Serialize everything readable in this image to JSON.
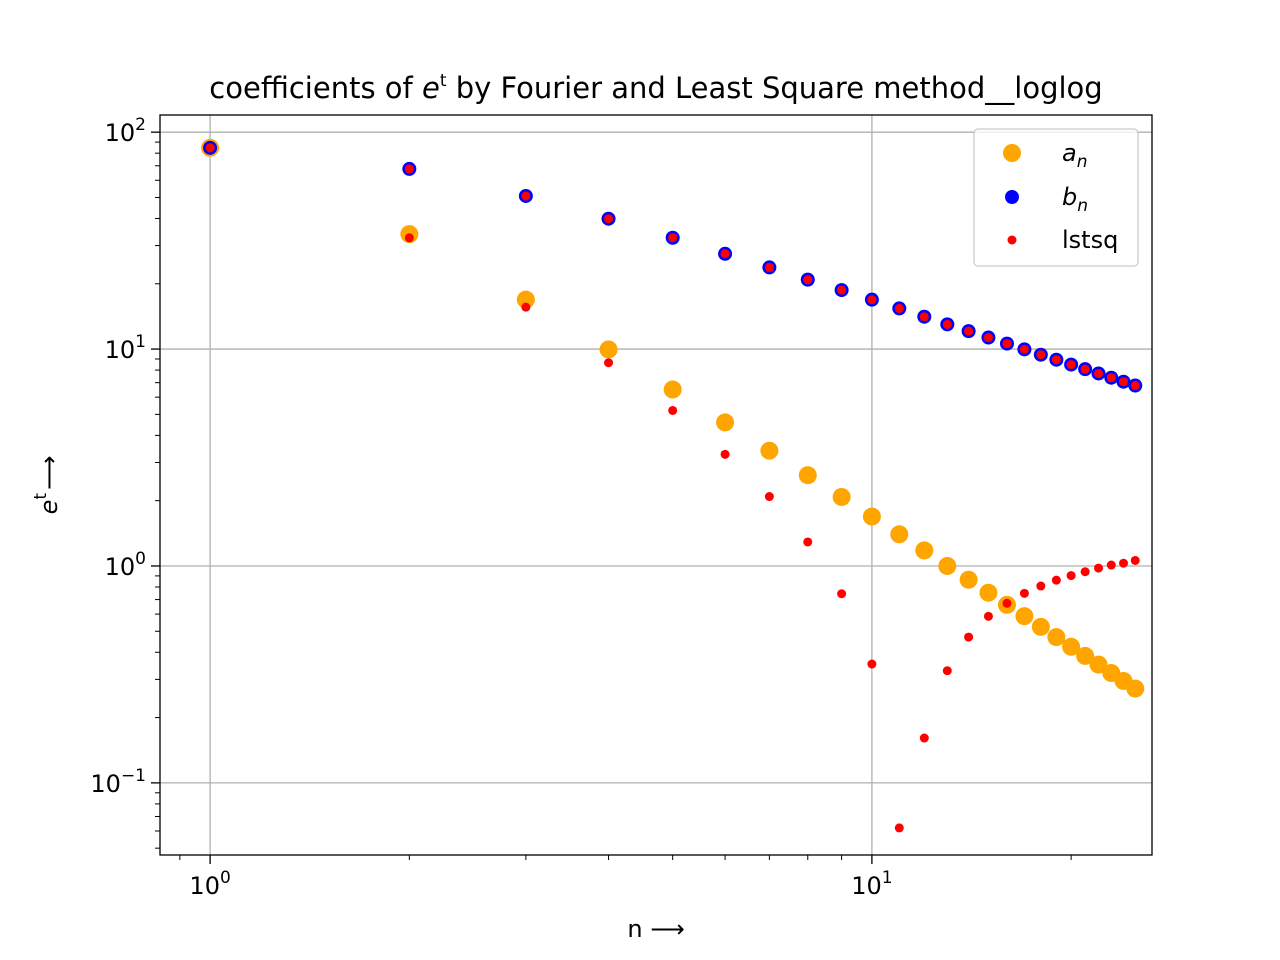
{
  "chart_data": {
    "type": "scatter",
    "title": {
      "prefix": "coefficients of ",
      "base": "e",
      "sup": "t",
      "suffix": " by Fourier and Least Square method__loglog"
    },
    "xlabel": "n ⟶",
    "ylabel": {
      "base": "e",
      "sup": "t",
      "arrow": "⟶"
    },
    "xscale": "log",
    "yscale": "log",
    "xlim": [
      0.84,
      26.5
    ],
    "ylim": [
      0.0465,
      120
    ],
    "grid": true,
    "legend_position": "top-right",
    "x_ticks": [
      {
        "value": 1,
        "base": "10",
        "exp": "0"
      },
      {
        "value": 10,
        "base": "10",
        "exp": "1"
      }
    ],
    "y_ticks": [
      {
        "value": 0.1,
        "base": "10",
        "exp": "−1"
      },
      {
        "value": 1,
        "base": "10",
        "exp": "0"
      },
      {
        "value": 10,
        "base": "10",
        "exp": "1"
      },
      {
        "value": 100,
        "base": "10",
        "exp": "2"
      }
    ],
    "series": [
      {
        "name": "a",
        "subscript": "n",
        "color": "#ffa500",
        "marker": "large-circle",
        "points": [
          [
            1,
            84.7
          ],
          [
            2,
            33.9
          ],
          [
            3,
            16.9
          ],
          [
            4,
            9.96
          ],
          [
            5,
            6.51
          ],
          [
            6,
            4.59
          ],
          [
            7,
            3.4
          ],
          [
            8,
            2.62
          ],
          [
            9,
            2.08
          ],
          [
            10,
            1.69
          ],
          [
            11,
            1.4
          ],
          [
            12,
            1.18
          ],
          [
            13,
            1.0
          ],
          [
            14,
            0.864
          ],
          [
            15,
            0.753
          ],
          [
            16,
            0.662
          ],
          [
            17,
            0.587
          ],
          [
            18,
            0.524
          ],
          [
            19,
            0.47
          ],
          [
            20,
            0.424
          ],
          [
            21,
            0.385
          ],
          [
            22,
            0.351
          ],
          [
            23,
            0.321
          ],
          [
            24,
            0.295
          ],
          [
            25,
            0.272
          ]
        ]
      },
      {
        "name": "b",
        "subscript": "n",
        "color": "#0000ff",
        "marker": "medium-circle",
        "points": [
          [
            1,
            84.7
          ],
          [
            2,
            67.7
          ],
          [
            3,
            50.8
          ],
          [
            4,
            39.9
          ],
          [
            5,
            32.6
          ],
          [
            6,
            27.5
          ],
          [
            7,
            23.8
          ],
          [
            8,
            20.9
          ],
          [
            9,
            18.7
          ],
          [
            10,
            16.9
          ],
          [
            11,
            15.4
          ],
          [
            12,
            14.1
          ],
          [
            13,
            13.0
          ],
          [
            14,
            12.1
          ],
          [
            15,
            11.3
          ],
          [
            16,
            10.6
          ],
          [
            17,
            9.97
          ],
          [
            18,
            9.42
          ],
          [
            19,
            8.93
          ],
          [
            20,
            8.48
          ],
          [
            21,
            8.08
          ],
          [
            22,
            7.72
          ],
          [
            23,
            7.38
          ],
          [
            24,
            7.07
          ],
          [
            25,
            6.79
          ]
        ]
      },
      {
        "name": "lstsq",
        "color": "#ff0000",
        "marker": "small-circle",
        "points": [
          [
            1,
            84.7
          ],
          [
            1,
            84.7
          ],
          [
            2,
            32.6
          ],
          [
            2,
            67.7
          ],
          [
            3,
            15.6
          ],
          [
            3,
            50.8
          ],
          [
            4,
            8.65
          ],
          [
            4,
            39.9
          ],
          [
            5,
            5.21
          ],
          [
            5,
            32.6
          ],
          [
            6,
            3.27
          ],
          [
            6,
            27.5
          ],
          [
            7,
            2.09
          ],
          [
            7,
            23.8
          ],
          [
            8,
            1.29
          ],
          [
            8,
            20.9
          ],
          [
            9,
            0.745
          ],
          [
            9,
            18.7
          ],
          [
            10,
            0.353
          ],
          [
            10,
            16.9
          ],
          [
            11,
            0.062
          ],
          [
            11,
            15.4
          ],
          [
            12,
            0.161
          ],
          [
            12,
            14.1
          ],
          [
            13,
            0.329
          ],
          [
            13,
            13.0
          ],
          [
            14,
            0.47
          ],
          [
            14,
            12.1
          ],
          [
            15,
            0.586
          ],
          [
            15,
            11.3
          ],
          [
            16,
            0.673
          ],
          [
            16,
            10.6
          ],
          [
            17,
            0.748
          ],
          [
            17,
            9.97
          ],
          [
            18,
            0.808
          ],
          [
            18,
            9.42
          ],
          [
            19,
            0.86
          ],
          [
            19,
            8.93
          ],
          [
            20,
            0.903
          ],
          [
            20,
            8.48
          ],
          [
            21,
            0.941
          ],
          [
            21,
            8.08
          ],
          [
            22,
            0.978
          ],
          [
            22,
            7.72
          ],
          [
            23,
            1.01
          ],
          [
            23,
            7.38
          ],
          [
            24,
            1.03
          ],
          [
            24,
            7.07
          ],
          [
            25,
            1.06
          ],
          [
            25,
            6.79
          ]
        ]
      }
    ]
  },
  "colors": {
    "grid": "#b0b0b0",
    "axes": "#000000",
    "legend_border": "#cccccc"
  }
}
